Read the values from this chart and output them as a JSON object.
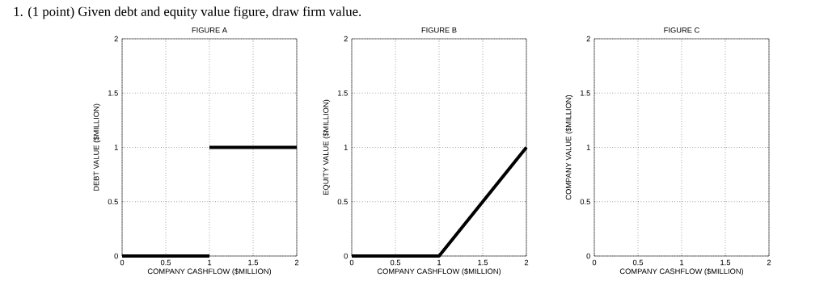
{
  "chart_data": [
    {
      "type": "line",
      "title": "FIGURE A",
      "xlabel": "COMPANY CASHFLOW ($MILLION)",
      "ylabel": "DEBT VALUE ($MILLION)",
      "annotations": [
        "1. (1 point) Given debt and equity value figure, draw firm value."
      ],
      "xlim": [
        0,
        2
      ],
      "ylim": [
        0,
        2
      ],
      "xticks": [
        0,
        0.5,
        1,
        1.5,
        2
      ],
      "yticks": [
        0,
        0.5,
        1,
        1.5,
        2
      ],
      "grid": true,
      "marker": "none",
      "line_style": "solid",
      "series": [
        {
          "color": "#000000",
          "x": [
            0,
            1
          ],
          "values": [
            0,
            0
          ]
        },
        {
          "color": "#000000",
          "x": [
            1,
            2
          ],
          "values": [
            1,
            1
          ]
        }
      ]
    },
    {
      "type": "line",
      "title": "FIGURE B",
      "xlabel": "COMPANY CASHFLOW ($MILLION)",
      "ylabel": "EQUITY VALUE ($MILLION)",
      "xlim": [
        0,
        2
      ],
      "ylim": [
        0,
        2
      ],
      "xticks": [
        0,
        0.5,
        1,
        1.5,
        2
      ],
      "yticks": [
        0,
        0.5,
        1,
        1.5,
        2
      ],
      "grid": true,
      "marker": "none",
      "line_style": "solid",
      "series": [
        {
          "color": "#000000",
          "x": [
            0,
            1,
            2
          ],
          "values": [
            0,
            0,
            1
          ]
        }
      ]
    },
    {
      "type": "line",
      "title": "FIGURE C",
      "xlabel": "COMPANY CASHFLOW ($MILLION)",
      "ylabel": "COMPANY VALUE ($MILLION)",
      "xlim": [
        0,
        2
      ],
      "ylim": [
        0,
        2
      ],
      "xticks": [
        0,
        0.5,
        1,
        1.5,
        2
      ],
      "yticks": [
        0,
        0.5,
        1,
        1.5,
        2
      ],
      "grid": true
    }
  ]
}
